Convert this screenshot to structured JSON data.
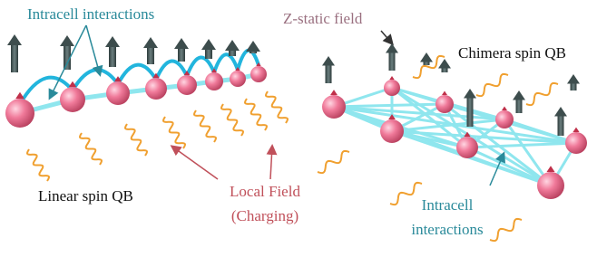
{
  "labels": {
    "intracell_top": "Intracell interactions",
    "z_field": "Z-static field",
    "chimera": "Chimera spin QB",
    "linear": "Linear spin QB",
    "local_field": [
      "Local Field",
      "(Charging)"
    ],
    "intracell_bottom": [
      "Intracell",
      "interactions"
    ]
  }
}
